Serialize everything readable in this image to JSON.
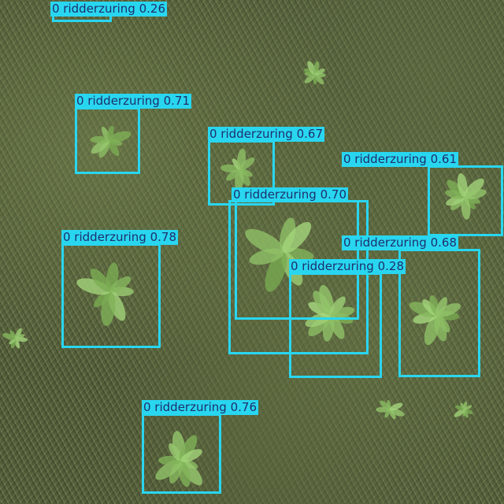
{
  "colors": {
    "box": "#29d6f0",
    "label_text": "#1d2f6b",
    "plant": "#8fb86a"
  },
  "detections": [
    {
      "label": "0 ridderzuring 0.26"
    },
    {
      "label": "0 ridderzuring 0.71"
    },
    {
      "label": "0 ridderzuring 0.67"
    },
    {
      "label": "0 ridderzuring 0.61"
    },
    {
      "label": "0 ridderzuring 0.70"
    },
    {
      "label": "0 ridderzuring 0.78"
    },
    {
      "label": "0 ridderzuring 0.68"
    },
    {
      "label": "0 ridderzuring 0.28"
    },
    {
      "label": "0 ridderzuring 0.76"
    }
  ]
}
